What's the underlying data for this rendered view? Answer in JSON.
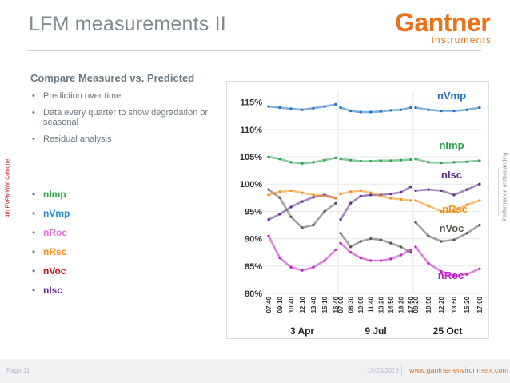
{
  "slide": {
    "title": "LFM measurements II",
    "subtitle": "Compare Measured vs. Predicted",
    "bullets": [
      "Prediction over time",
      "Data every quarter to show degradation or seasonal",
      "Residual analysis"
    ],
    "series_list": [
      {
        "label": "nImp",
        "color": "#2aa84a"
      },
      {
        "label": "nVmp",
        "color": "#1b8fd0"
      },
      {
        "label": "nRoc",
        "color": "#e36dd9"
      },
      {
        "label": "nRsc",
        "color": "#f28f1a"
      },
      {
        "label": "nVoc",
        "color": "#c0151c"
      },
      {
        "label": "nIsc",
        "color": "#5b2a8c"
      }
    ],
    "side_left": "4th PVPMMW, Cologne",
    "side_right": "Performance understanding"
  },
  "brand": {
    "name": "Gantner",
    "sub": "instruments",
    "accent": "#e8731b"
  },
  "footer": {
    "page": "Page 11",
    "date": "10/23/2015",
    "url": "www.gantner-environment.com"
  },
  "chart_data": {
    "type": "line",
    "title": "",
    "xlabel": "",
    "ylabel": "",
    "ylim": [
      80,
      117
    ],
    "yticks": [
      "80%",
      "85%",
      "90%",
      "95%",
      "100%",
      "105%",
      "110%",
      "115%"
    ],
    "panels": [
      {
        "label": "3 Apr",
        "xticks": [
          "07:40",
          "09:10",
          "10:40",
          "12:10",
          "13:40",
          "15:10",
          "16:40"
        ]
      },
      {
        "label": "9 Jul",
        "xticks": [
          "07:00",
          "08:30",
          "10:00",
          "11:40",
          "13:20",
          "14:50",
          "16:20",
          "17:50"
        ]
      },
      {
        "label": "25 Oct",
        "xticks": [
          "09:20",
          "10:50",
          "12:20",
          "13:50",
          "15:20",
          "17:00"
        ]
      }
    ],
    "series": [
      {
        "name": "nVmp",
        "color": "#1f6fc0",
        "panels": [
          [
            114.2,
            114.0,
            113.8,
            113.6,
            113.9,
            114.2,
            114.6
          ],
          [
            114.0,
            113.4,
            113.2,
            113.2,
            113.3,
            113.5,
            113.6,
            114.0
          ],
          [
            114.0,
            113.6,
            113.4,
            113.4,
            113.6,
            114.0
          ]
        ]
      },
      {
        "name": "nImp",
        "color": "#28a04c",
        "panels": [
          [
            105.0,
            104.6,
            104.0,
            103.8,
            104.0,
            104.4,
            104.8
          ],
          [
            104.6,
            104.4,
            104.2,
            104.2,
            104.3,
            104.3,
            104.4,
            104.5
          ],
          [
            104.6,
            104.0,
            103.9,
            104.0,
            104.1,
            104.3
          ]
        ]
      },
      {
        "name": "nIsc",
        "color": "#5b2a8c",
        "panels": [
          [
            93.5,
            94.5,
            95.8,
            96.8,
            97.6,
            98.0,
            97.4
          ],
          [
            93.5,
            96.5,
            97.8,
            98.0,
            98.0,
            98.2,
            98.5,
            99.5
          ],
          [
            98.8,
            99.0,
            98.8,
            98.0,
            99.0,
            100.0
          ]
        ]
      },
      {
        "name": "nRsc",
        "color": "#f28f1a",
        "panels": [
          [
            98.0,
            98.6,
            98.8,
            98.4,
            98.0,
            97.8,
            97.4
          ],
          [
            98.2,
            98.6,
            98.8,
            98.4,
            97.8,
            97.4,
            97.2,
            97.0
          ],
          [
            97.0,
            96.0,
            95.0,
            95.0,
            96.2,
            97.0
          ]
        ]
      },
      {
        "name": "nVoc",
        "color": "#56564f",
        "panels": [
          [
            99.0,
            97.5,
            94.0,
            92.0,
            92.5,
            95.0,
            96.5
          ],
          [
            91.0,
            88.5,
            89.5,
            90.0,
            89.8,
            89.2,
            88.5,
            87.5
          ],
          [
            93.0,
            90.5,
            89.5,
            89.8,
            91.0,
            92.5
          ]
        ]
      },
      {
        "name": "nRoc",
        "color": "#c01fc4",
        "panels": [
          [
            90.5,
            86.5,
            84.8,
            84.2,
            84.8,
            86.0,
            88.0
          ],
          [
            89.2,
            87.5,
            86.5,
            86.0,
            86.0,
            86.3,
            87.0,
            88.0
          ],
          [
            88.5,
            85.5,
            84.0,
            83.2,
            83.5,
            84.5
          ]
        ]
      }
    ],
    "labels": [
      {
        "text": "nVmp",
        "color": "#1f6fc0"
      },
      {
        "text": "nImp",
        "color": "#28a04c"
      },
      {
        "text": "nIsc",
        "color": "#5b2a8c"
      },
      {
        "text": "nRsc",
        "color": "#f28f1a"
      },
      {
        "text": "nVoc",
        "color": "#56564f"
      },
      {
        "text": "nRoc",
        "color": "#c01fc4"
      }
    ]
  }
}
